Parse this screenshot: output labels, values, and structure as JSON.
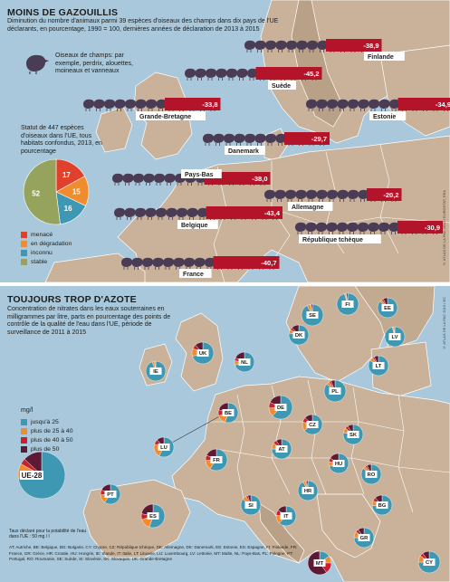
{
  "panel1": {
    "title": "MOINS DE GAZOUILLIS",
    "subtitle": "Diminution du nombre d'animaux parmi 39 espèces d'oiseaux des champs dans dix pays de l'UE déclarants, en pourcentage, 1990 = 100, dernières années de déclaration de 2013 à 2015",
    "bird_legend": "Oiseaux de champs: par exemple, perdrix, alouettes, moineaux et vanneaux",
    "status_title": "Statut de 447 espèces d'oiseaux dans l'UE, tous habitats confondus, 2013, en pourcentage",
    "credit": "© ATLAS DE LA PAC 2019 / EUROSTAT, EEA",
    "colors": {
      "dark_bird": "#4a3c54",
      "red_bird": "#b3142a",
      "label_box": "#ffffff"
    },
    "bars": [
      {
        "country": "Finlande",
        "value": "-38,9"
      },
      {
        "country": "Suède",
        "value": "-45,2"
      },
      {
        "country": "Grande-Bretagne",
        "value": "-33,8"
      },
      {
        "country": "Estonie",
        "value": "-34,9"
      },
      {
        "country": "Danemark",
        "value": "-29,7"
      },
      {
        "country": "Pays-Bas",
        "value": "-38,0"
      },
      {
        "country": "Allemagne",
        "value": "-20,2"
      },
      {
        "country": "Belgique",
        "value": "-43,4"
      },
      {
        "country": "République tchèque",
        "value": "-30,9"
      },
      {
        "country": "France",
        "value": "-40,7"
      }
    ],
    "pie_legend": [
      {
        "label": "menacé",
        "color": "#e1412b"
      },
      {
        "label": "en dégradation",
        "color": "#f08c2e"
      },
      {
        "label": "inconnu",
        "color": "#3f98b3"
      },
      {
        "label": "stable",
        "color": "#95a35d"
      }
    ]
  },
  "chart_data": {
    "type": "pie",
    "title": "Statut de 447 espèces d'oiseaux dans l'UE, tous habitats confondus, 2013, en pourcentage",
    "categories": [
      "menacé",
      "en dégradation",
      "inconnu",
      "stable"
    ],
    "values": [
      17,
      15,
      16,
      52
    ],
    "colors": [
      "#e1412b",
      "#f08c2e",
      "#3f98b3",
      "#95a35d"
    ]
  },
  "panel2": {
    "title": "TOUJOURS TROP D'AZOTE",
    "subtitle": "Concentration de nitrates dans les eaux souterraines en milligrammes par litre, parts en pourcentage des points de contrôle de la qualité de l'eau dans l'UE, période de surveillance de 2011 à 2015",
    "unit": "mg/l",
    "credit": "© ATLAS DE LA PAC 2019 / EC",
    "legend": [
      {
        "label": "jusqu'à 25",
        "color": "#3f98b3"
      },
      {
        "label": "plus de 25 à 40",
        "color": "#f08c2e"
      },
      {
        "label": "plus de 40 à 50",
        "color": "#c8202f"
      },
      {
        "label": "plus de 50",
        "color": "#5e1a35"
      }
    ],
    "threshold": "Taux déclaré pour la potabilité de l'eau dans l'UE : 50 mg / l",
    "abbreviations": "AT: Autriche, BE: Belgique, BG: Bulgarie, CY: Chypre, CZ: République tchèque, DE: Allemagne, DK: Danemark, EE: Estonie, ES: Espagne, FI: Finlande, FR: France, GR: Grèce, HR: Croatie, HU: Hongrie, IE: Irlande, IT: Italie, LT: Lituanie, LU: Luxembourg, LV: Lettonie, MT: Malte, NL: Pays-Bas, PL: Pologne, PT: Portugal, RO: Roumanie, SE: Suède, SI: Slovénie, SK: Slovaquie, UK: Grande-Bretagne",
    "countries": [
      {
        "code": "SE",
        "shares": [
          92,
          5,
          1,
          2
        ]
      },
      {
        "code": "FI",
        "shares": [
          95,
          2,
          1,
          2
        ]
      },
      {
        "code": "EE",
        "shares": [
          86,
          4,
          3,
          7
        ]
      },
      {
        "code": "LV",
        "shares": [
          96,
          2,
          1,
          1
        ]
      },
      {
        "code": "LT",
        "shares": [
          84,
          6,
          3,
          7
        ]
      },
      {
        "code": "DK",
        "shares": [
          78,
          6,
          4,
          12
        ]
      },
      {
        "code": "IE",
        "shares": [
          94,
          4,
          1,
          1
        ]
      },
      {
        "code": "UK",
        "shares": [
          70,
          12,
          6,
          12
        ]
      },
      {
        "code": "NL",
        "shares": [
          70,
          7,
          5,
          18
        ]
      },
      {
        "code": "DE",
        "shares": [
          62,
          12,
          8,
          18
        ]
      },
      {
        "code": "PL",
        "shares": [
          86,
          5,
          3,
          6
        ]
      },
      {
        "code": "BE",
        "shares": [
          55,
          15,
          10,
          20
        ]
      },
      {
        "code": "CZ",
        "shares": [
          65,
          14,
          8,
          13
        ]
      },
      {
        "code": "SK",
        "shares": [
          78,
          8,
          5,
          9
        ]
      },
      {
        "code": "LU",
        "shares": [
          58,
          22,
          8,
          12
        ]
      },
      {
        "code": "FR",
        "shares": [
          60,
          14,
          8,
          18
        ]
      },
      {
        "code": "AT",
        "shares": [
          75,
          10,
          6,
          9
        ]
      },
      {
        "code": "HU",
        "shares": [
          70,
          8,
          6,
          16
        ]
      },
      {
        "code": "RO",
        "shares": [
          85,
          5,
          3,
          7
        ]
      },
      {
        "code": "SI",
        "shares": [
          85,
          7,
          3,
          5
        ]
      },
      {
        "code": "HR",
        "shares": [
          92,
          4,
          2,
          2
        ]
      },
      {
        "code": "BG",
        "shares": [
          74,
          8,
          6,
          12
        ]
      },
      {
        "code": "PT",
        "shares": [
          60,
          14,
          8,
          18
        ]
      },
      {
        "code": "ES",
        "shares": [
          55,
          15,
          8,
          22
        ]
      },
      {
        "code": "IT",
        "shares": [
          62,
          14,
          9,
          15
        ]
      },
      {
        "code": "GR",
        "shares": [
          75,
          10,
          5,
          10
        ]
      },
      {
        "code": "MT",
        "shares": [
          15,
          10,
          15,
          60
        ]
      },
      {
        "code": "CY",
        "shares": [
          75,
          10,
          5,
          10
        ]
      },
      {
        "code": "UE-28",
        "shares": [
          73,
          10,
          4,
          13
        ]
      }
    ]
  }
}
